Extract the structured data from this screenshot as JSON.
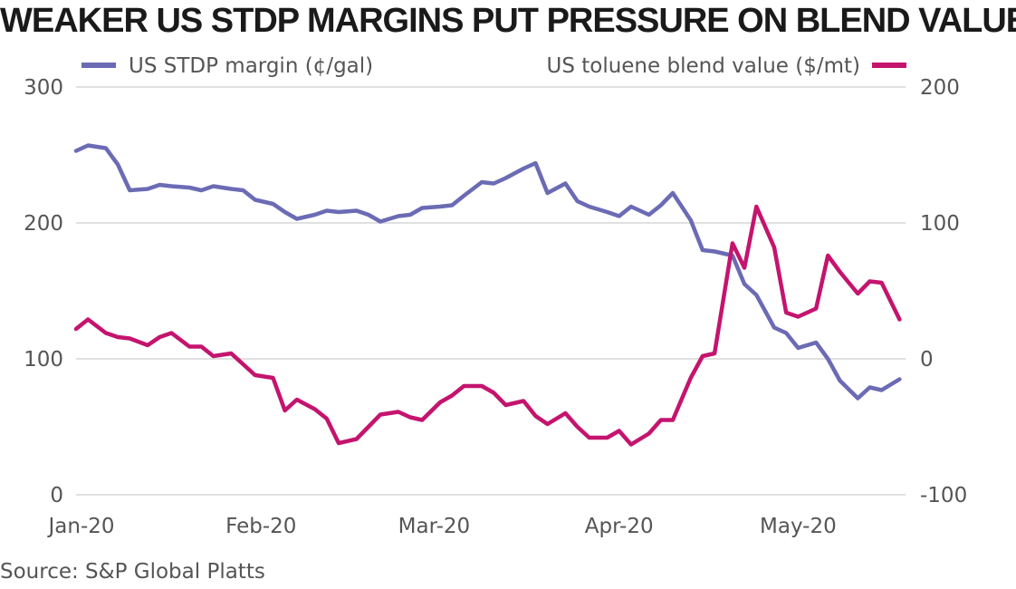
{
  "chart_data": {
    "type": "line",
    "title": "WEAKER US STDP MARGINS PUT PRESSURE ON BLEND VALUES",
    "source": "Source: S&P Global Platts",
    "x_range": [
      "2020-01-01",
      "2020-05-19"
    ],
    "x_ticks": [
      {
        "label": "Jan-20",
        "date": "2020-01-01"
      },
      {
        "label": "Feb-20",
        "date": "2020-02-01"
      },
      {
        "label": "Mar-20",
        "date": "2020-03-01"
      },
      {
        "label": "Apr-20",
        "date": "2020-04-01"
      },
      {
        "label": "May-20",
        "date": "2020-05-01"
      }
    ],
    "y_left": {
      "ylim": [
        0,
        300
      ],
      "ticks": [
        0,
        100,
        200,
        300
      ],
      "labels": [
        "0",
        "100",
        "200",
        "300"
      ]
    },
    "y_right": {
      "ylim": [
        -100,
        200
      ],
      "ticks": [
        -100,
        0,
        100,
        200
      ],
      "labels": [
        "-100",
        "0",
        "100",
        "200"
      ]
    },
    "grid": true,
    "legend_position": "top",
    "series": [
      {
        "name": "US STDP margin (¢/gal)",
        "axis": "left",
        "color": "#6b6bb5",
        "points": [
          [
            "2020-01-01",
            253
          ],
          [
            "2020-01-03",
            257
          ],
          [
            "2020-01-06",
            255
          ],
          [
            "2020-01-08",
            243
          ],
          [
            "2020-01-10",
            224
          ],
          [
            "2020-01-13",
            225
          ],
          [
            "2020-01-15",
            228
          ],
          [
            "2020-01-17",
            227
          ],
          [
            "2020-01-20",
            226
          ],
          [
            "2020-01-22",
            224
          ],
          [
            "2020-01-24",
            227
          ],
          [
            "2020-01-27",
            225
          ],
          [
            "2020-01-29",
            224
          ],
          [
            "2020-01-31",
            217
          ],
          [
            "2020-02-03",
            214
          ],
          [
            "2020-02-05",
            208
          ],
          [
            "2020-02-07",
            203
          ],
          [
            "2020-02-10",
            206
          ],
          [
            "2020-02-12",
            209
          ],
          [
            "2020-02-14",
            208
          ],
          [
            "2020-02-17",
            209
          ],
          [
            "2020-02-19",
            206
          ],
          [
            "2020-02-21",
            201
          ],
          [
            "2020-02-24",
            205
          ],
          [
            "2020-02-26",
            206
          ],
          [
            "2020-02-28",
            211
          ],
          [
            "2020-03-02",
            212
          ],
          [
            "2020-03-04",
            213
          ],
          [
            "2020-03-06",
            220
          ],
          [
            "2020-03-09",
            230
          ],
          [
            "2020-03-11",
            229
          ],
          [
            "2020-03-13",
            233
          ],
          [
            "2020-03-16",
            240
          ],
          [
            "2020-03-18",
            244
          ],
          [
            "2020-03-20",
            222
          ],
          [
            "2020-03-23",
            229
          ],
          [
            "2020-03-25",
            216
          ],
          [
            "2020-03-27",
            212
          ],
          [
            "2020-03-30",
            208
          ],
          [
            "2020-04-01",
            205
          ],
          [
            "2020-04-03",
            212
          ],
          [
            "2020-04-06",
            206
          ],
          [
            "2020-04-08",
            213
          ],
          [
            "2020-04-10",
            222
          ],
          [
            "2020-04-13",
            202
          ],
          [
            "2020-04-15",
            180
          ],
          [
            "2020-04-17",
            179
          ],
          [
            "2020-04-20",
            176
          ],
          [
            "2020-04-22",
            155
          ],
          [
            "2020-04-24",
            147
          ],
          [
            "2020-04-27",
            123
          ],
          [
            "2020-04-29",
            119
          ],
          [
            "2020-05-01",
            108
          ],
          [
            "2020-05-04",
            112
          ],
          [
            "2020-05-06",
            100
          ],
          [
            "2020-05-08",
            84
          ],
          [
            "2020-05-11",
            71
          ],
          [
            "2020-05-13",
            79
          ],
          [
            "2020-05-15",
            77
          ],
          [
            "2020-05-18",
            85
          ]
        ]
      },
      {
        "name": "US toluene blend value ($/mt)",
        "axis": "right",
        "color": "#c4146e",
        "points": [
          [
            "2020-01-01",
            22
          ],
          [
            "2020-01-03",
            29
          ],
          [
            "2020-01-06",
            19
          ],
          [
            "2020-01-08",
            16
          ],
          [
            "2020-01-10",
            15
          ],
          [
            "2020-01-13",
            10
          ],
          [
            "2020-01-15",
            16
          ],
          [
            "2020-01-17",
            19
          ],
          [
            "2020-01-20",
            9
          ],
          [
            "2020-01-22",
            9
          ],
          [
            "2020-01-24",
            2
          ],
          [
            "2020-01-27",
            4
          ],
          [
            "2020-01-29",
            -4
          ],
          [
            "2020-01-31",
            -12
          ],
          [
            "2020-02-03",
            -14
          ],
          [
            "2020-02-05",
            -38
          ],
          [
            "2020-02-07",
            -30
          ],
          [
            "2020-02-10",
            -37
          ],
          [
            "2020-02-12",
            -44
          ],
          [
            "2020-02-14",
            -62
          ],
          [
            "2020-02-17",
            -59
          ],
          [
            "2020-02-19",
            -50
          ],
          [
            "2020-02-21",
            -41
          ],
          [
            "2020-02-24",
            -39
          ],
          [
            "2020-02-26",
            -43
          ],
          [
            "2020-02-28",
            -45
          ],
          [
            "2020-03-02",
            -32
          ],
          [
            "2020-03-04",
            -27
          ],
          [
            "2020-03-06",
            -20
          ],
          [
            "2020-03-09",
            -20
          ],
          [
            "2020-03-11",
            -25
          ],
          [
            "2020-03-13",
            -34
          ],
          [
            "2020-03-16",
            -31
          ],
          [
            "2020-03-18",
            -42
          ],
          [
            "2020-03-20",
            -48
          ],
          [
            "2020-03-23",
            -40
          ],
          [
            "2020-03-25",
            -50
          ],
          [
            "2020-03-27",
            -58
          ],
          [
            "2020-03-30",
            -58
          ],
          [
            "2020-04-01",
            -53
          ],
          [
            "2020-04-03",
            -63
          ],
          [
            "2020-04-06",
            -55
          ],
          [
            "2020-04-08",
            -45
          ],
          [
            "2020-04-10",
            -45
          ],
          [
            "2020-04-13",
            -14
          ],
          [
            "2020-04-15",
            2
          ],
          [
            "2020-04-17",
            4
          ],
          [
            "2020-04-20",
            85
          ],
          [
            "2020-04-22",
            67
          ],
          [
            "2020-04-24",
            112
          ],
          [
            "2020-04-27",
            82
          ],
          [
            "2020-04-29",
            34
          ],
          [
            "2020-05-01",
            31
          ],
          [
            "2020-05-04",
            37
          ],
          [
            "2020-05-06",
            76
          ],
          [
            "2020-05-08",
            64
          ],
          [
            "2020-05-11",
            48
          ],
          [
            "2020-05-13",
            57
          ],
          [
            "2020-05-15",
            56
          ],
          [
            "2020-05-18",
            29
          ]
        ]
      }
    ]
  }
}
